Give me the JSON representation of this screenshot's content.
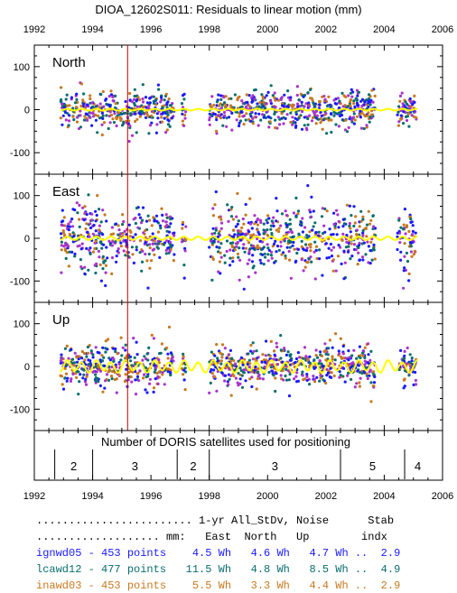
{
  "title": "DIOA_12602S011: Residuals to linear motion (mm)",
  "colors": {
    "yellow": "#ffff00",
    "red": "#cc0000",
    "blue": "#1a1aff",
    "teal": "#0a6e6e",
    "orange": "#c8781e",
    "purple": "#aa33cc"
  },
  "chart_data": [
    {
      "type": "scatter",
      "title": "North",
      "xlim": [
        1992,
        2006
      ],
      "ylim": [
        -150,
        150
      ],
      "x_ticks": [
        "1992",
        "1994",
        "1996",
        "1998",
        "2000",
        "2002",
        "2004",
        "2006"
      ],
      "y_ticks": [
        "100",
        "0",
        "-100"
      ],
      "gaps": [
        [
          1996.8,
          1997.8
        ],
        [
          2003.7,
          2004.4
        ]
      ],
      "data_ranges": [
        [
          1992.9,
          1996.8
        ],
        [
          1997.05,
          1997.2
        ],
        [
          1998.0,
          2003.7
        ],
        [
          2004.45,
          2005.1
        ]
      ],
      "scatter_sd": 22,
      "model_amplitude": 2
    },
    {
      "type": "scatter",
      "title": "East",
      "xlim": [
        1992,
        2006
      ],
      "ylim": [
        -150,
        150
      ],
      "x_ticks": [
        "1992",
        "1994",
        "1996",
        "1998",
        "2000",
        "2002",
        "2004",
        "2006"
      ],
      "y_ticks": [
        "100",
        "0",
        "-100"
      ],
      "gaps": [
        [
          1996.8,
          1997.8
        ],
        [
          2003.7,
          2004.4
        ]
      ],
      "data_ranges": [
        [
          1992.9,
          1996.8
        ],
        [
          1997.05,
          1997.2
        ],
        [
          1998.0,
          2003.7
        ],
        [
          2004.45,
          2005.1
        ]
      ],
      "scatter_sd": 38,
      "model_amplitude": 4
    },
    {
      "type": "scatter",
      "title": "Up",
      "xlim": [
        1992,
        2006
      ],
      "ylim": [
        -150,
        150
      ],
      "x_ticks": [
        "1992",
        "1994",
        "1996",
        "1998",
        "2000",
        "2002",
        "2004",
        "2006"
      ],
      "y_ticks": [
        "100",
        "0",
        "-100"
      ],
      "gaps": [
        [
          1996.8,
          1997.8
        ],
        [
          2003.7,
          2004.4
        ]
      ],
      "data_ranges": [
        [
          1992.9,
          1996.8
        ],
        [
          1997.05,
          1997.2
        ],
        [
          1998.0,
          2003.7
        ],
        [
          2004.45,
          2005.1
        ]
      ],
      "scatter_sd": 25,
      "model_amplitude": 12
    }
  ],
  "event_line_year": 1995.2,
  "satellites": {
    "title": "Number of DORIS satellites used for positioning",
    "segments": [
      {
        "from": 1992.7,
        "to": 1994.0,
        "count": "2"
      },
      {
        "from": 1994.0,
        "to": 1996.9,
        "count": "3"
      },
      {
        "from": 1996.9,
        "to": 1998.0,
        "count": "2"
      },
      {
        "from": 1998.0,
        "to": 2002.5,
        "count": "3"
      },
      {
        "from": 2002.5,
        "to": 2004.7,
        "count": "5"
      },
      {
        "from": 2004.7,
        "to": 2005.6,
        "count": "4"
      }
    ]
  },
  "legend": {
    "header1": "........................ 1-yr All_StDv, Noise      Stab",
    "header2": "................... mm:   East  North   Up        indx",
    "rows": [
      {
        "name": "ignwd05",
        "text": "ignwd05 - 453 points    4.5 Wh   4.6 Wh   4.7 Wh ..  2.9",
        "color": "#1a1aff"
      },
      {
        "name": "lcawd12",
        "text": "lcawd12 - 477 points   11.5 Wh   4.8 Wh   8.5 Wh ..  4.9",
        "color": "#0a6e6e"
      },
      {
        "name": "inawd03",
        "text": "inawd03 - 453 points    5.5 Wh   3.3 Wh   4.4 Wh ..  2.9",
        "color": "#c8781e"
      }
    ]
  }
}
